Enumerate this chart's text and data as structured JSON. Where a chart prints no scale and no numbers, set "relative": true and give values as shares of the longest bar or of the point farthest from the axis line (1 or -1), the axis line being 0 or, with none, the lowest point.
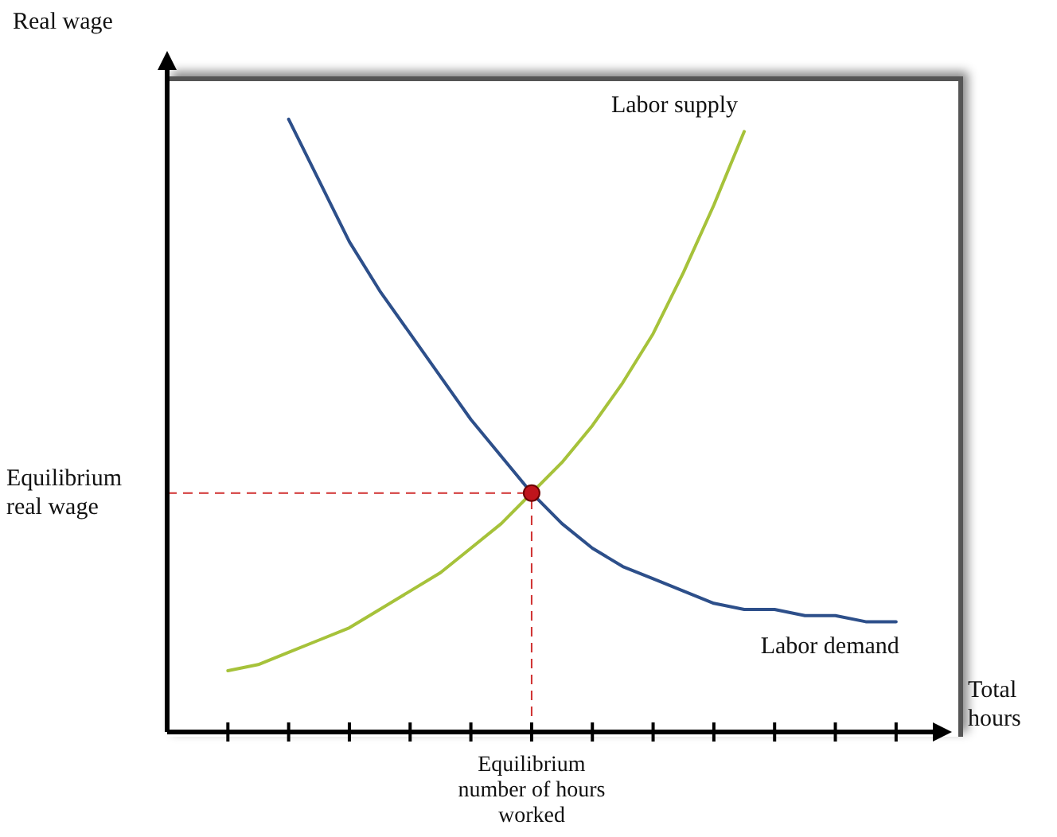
{
  "chart_data": {
    "type": "line",
    "relative": true,
    "xlabel": "Total hours",
    "ylabel": "Real wage",
    "categories": [
      null,
      null,
      null,
      null,
      null,
      null,
      null,
      null,
      null,
      null,
      null,
      null,
      null,
      null,
      null,
      null,
      null,
      null,
      null,
      null,
      null,
      null,
      null,
      null,
      null,
      null
    ],
    "series": [
      {
        "name": "Labor demand",
        "color": "#2d4f8a",
        "values": [
          null,
          null,
          null,
          null,
          1,
          0.9,
          0.8,
          0.72,
          0.65,
          0.58,
          0.51,
          0.45,
          0.39,
          0.34,
          0.3,
          0.27,
          0.25,
          0.23,
          0.21,
          0.2,
          0.2,
          0.19,
          0.19,
          0.18,
          0.18,
          null
        ]
      },
      {
        "name": "Labor supply",
        "color": "#a6c23a",
        "values": [
          null,
          null,
          0.1,
          0.11,
          0.13,
          0.15,
          0.17,
          0.2,
          0.23,
          0.26,
          0.3,
          0.34,
          0.39,
          0.44,
          0.5,
          0.57,
          0.65,
          0.75,
          0.86,
          0.98,
          null,
          null,
          null,
          null,
          null,
          null
        ]
      }
    ],
    "ref_lines": [
      {
        "axis": "y",
        "value": 0.39,
        "label": "Equilibrium real wage",
        "color": "#d03030",
        "line_style": "dashed"
      },
      {
        "axis": "x",
        "label": "Equilibrium number of hours worked",
        "color": "#d03030",
        "line_style": "dashed"
      }
    ],
    "line_style": "solid"
  }
}
